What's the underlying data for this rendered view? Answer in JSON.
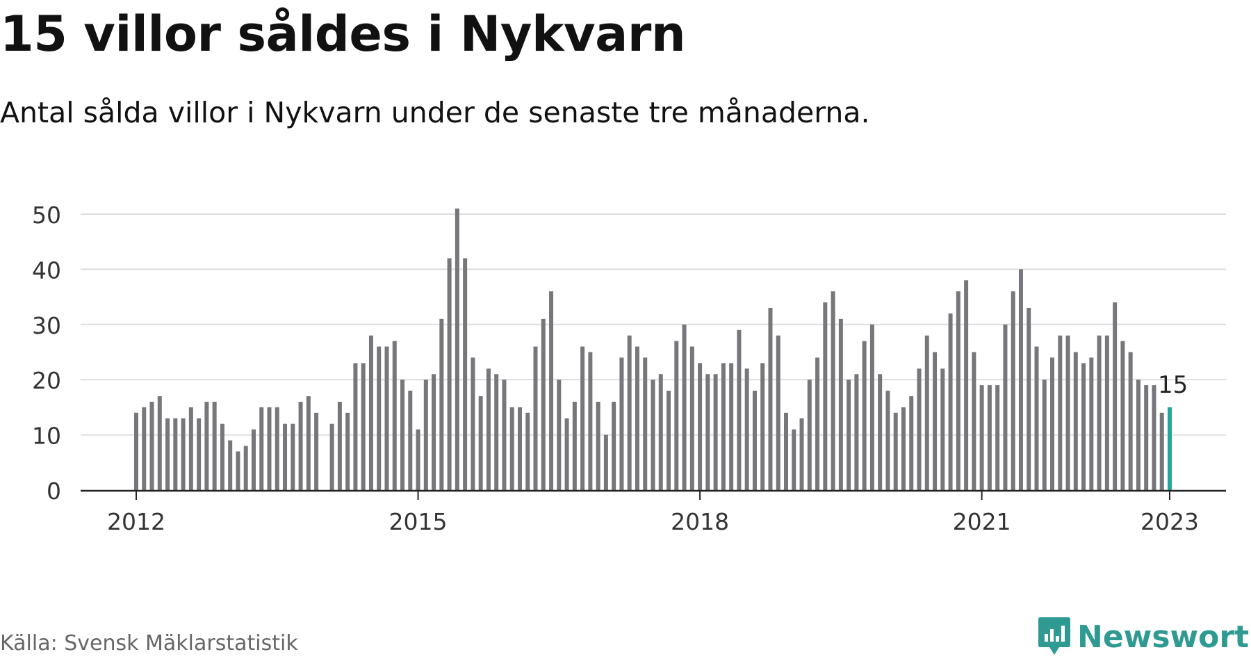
{
  "title": "15 villor såldes i Nykvarn",
  "subtitle": "Antal sålda villor i Nykvarn under de senaste tre månaderna.",
  "source": "Källa: Svensk Mäklarstatistik",
  "brand": {
    "name": "Newsworthy",
    "icon": "newsworthy-logo-icon",
    "color": "#2e9a92"
  },
  "colors": {
    "bar": "#77767b",
    "highlight": "#22a79a",
    "grid": "#dddddd",
    "axis": "#222222",
    "text": "#333333"
  },
  "chart_data": {
    "type": "bar",
    "grid": true,
    "ylim": [
      0,
      51
    ],
    "yticks": [
      0,
      10,
      20,
      30,
      40,
      50
    ],
    "xticks": [
      "2012",
      "2015",
      "2018",
      "2021",
      "2023"
    ],
    "x_start": "2012-01",
    "x_end": "2023-01",
    "annotation": {
      "label": "15",
      "x": "2023-01"
    },
    "highlight_last": true,
    "values": [
      14,
      15,
      16,
      17,
      13,
      13,
      13,
      15,
      13,
      16,
      16,
      12,
      9,
      7,
      8,
      11,
      15,
      15,
      15,
      12,
      12,
      16,
      17,
      14,
      null,
      12,
      16,
      14,
      23,
      23,
      28,
      26,
      26,
      27,
      20,
      18,
      11,
      20,
      21,
      31,
      42,
      51,
      42,
      24,
      17,
      22,
      21,
      20,
      15,
      15,
      14,
      26,
      31,
      36,
      20,
      13,
      16,
      26,
      25,
      16,
      10,
      16,
      24,
      28,
      26,
      24,
      20,
      21,
      18,
      27,
      30,
      26,
      23,
      21,
      21,
      23,
      23,
      29,
      22,
      18,
      23,
      33,
      28,
      14,
      11,
      13,
      20,
      24,
      34,
      36,
      31,
      20,
      21,
      27,
      30,
      21,
      18,
      14,
      15,
      17,
      22,
      28,
      25,
      22,
      32,
      36,
      38,
      25,
      19,
      19,
      19,
      30,
      36,
      40,
      33,
      26,
      20,
      24,
      28,
      28,
      25,
      23,
      24,
      28,
      28,
      34,
      27,
      25,
      20,
      19,
      19,
      14,
      15
    ]
  }
}
